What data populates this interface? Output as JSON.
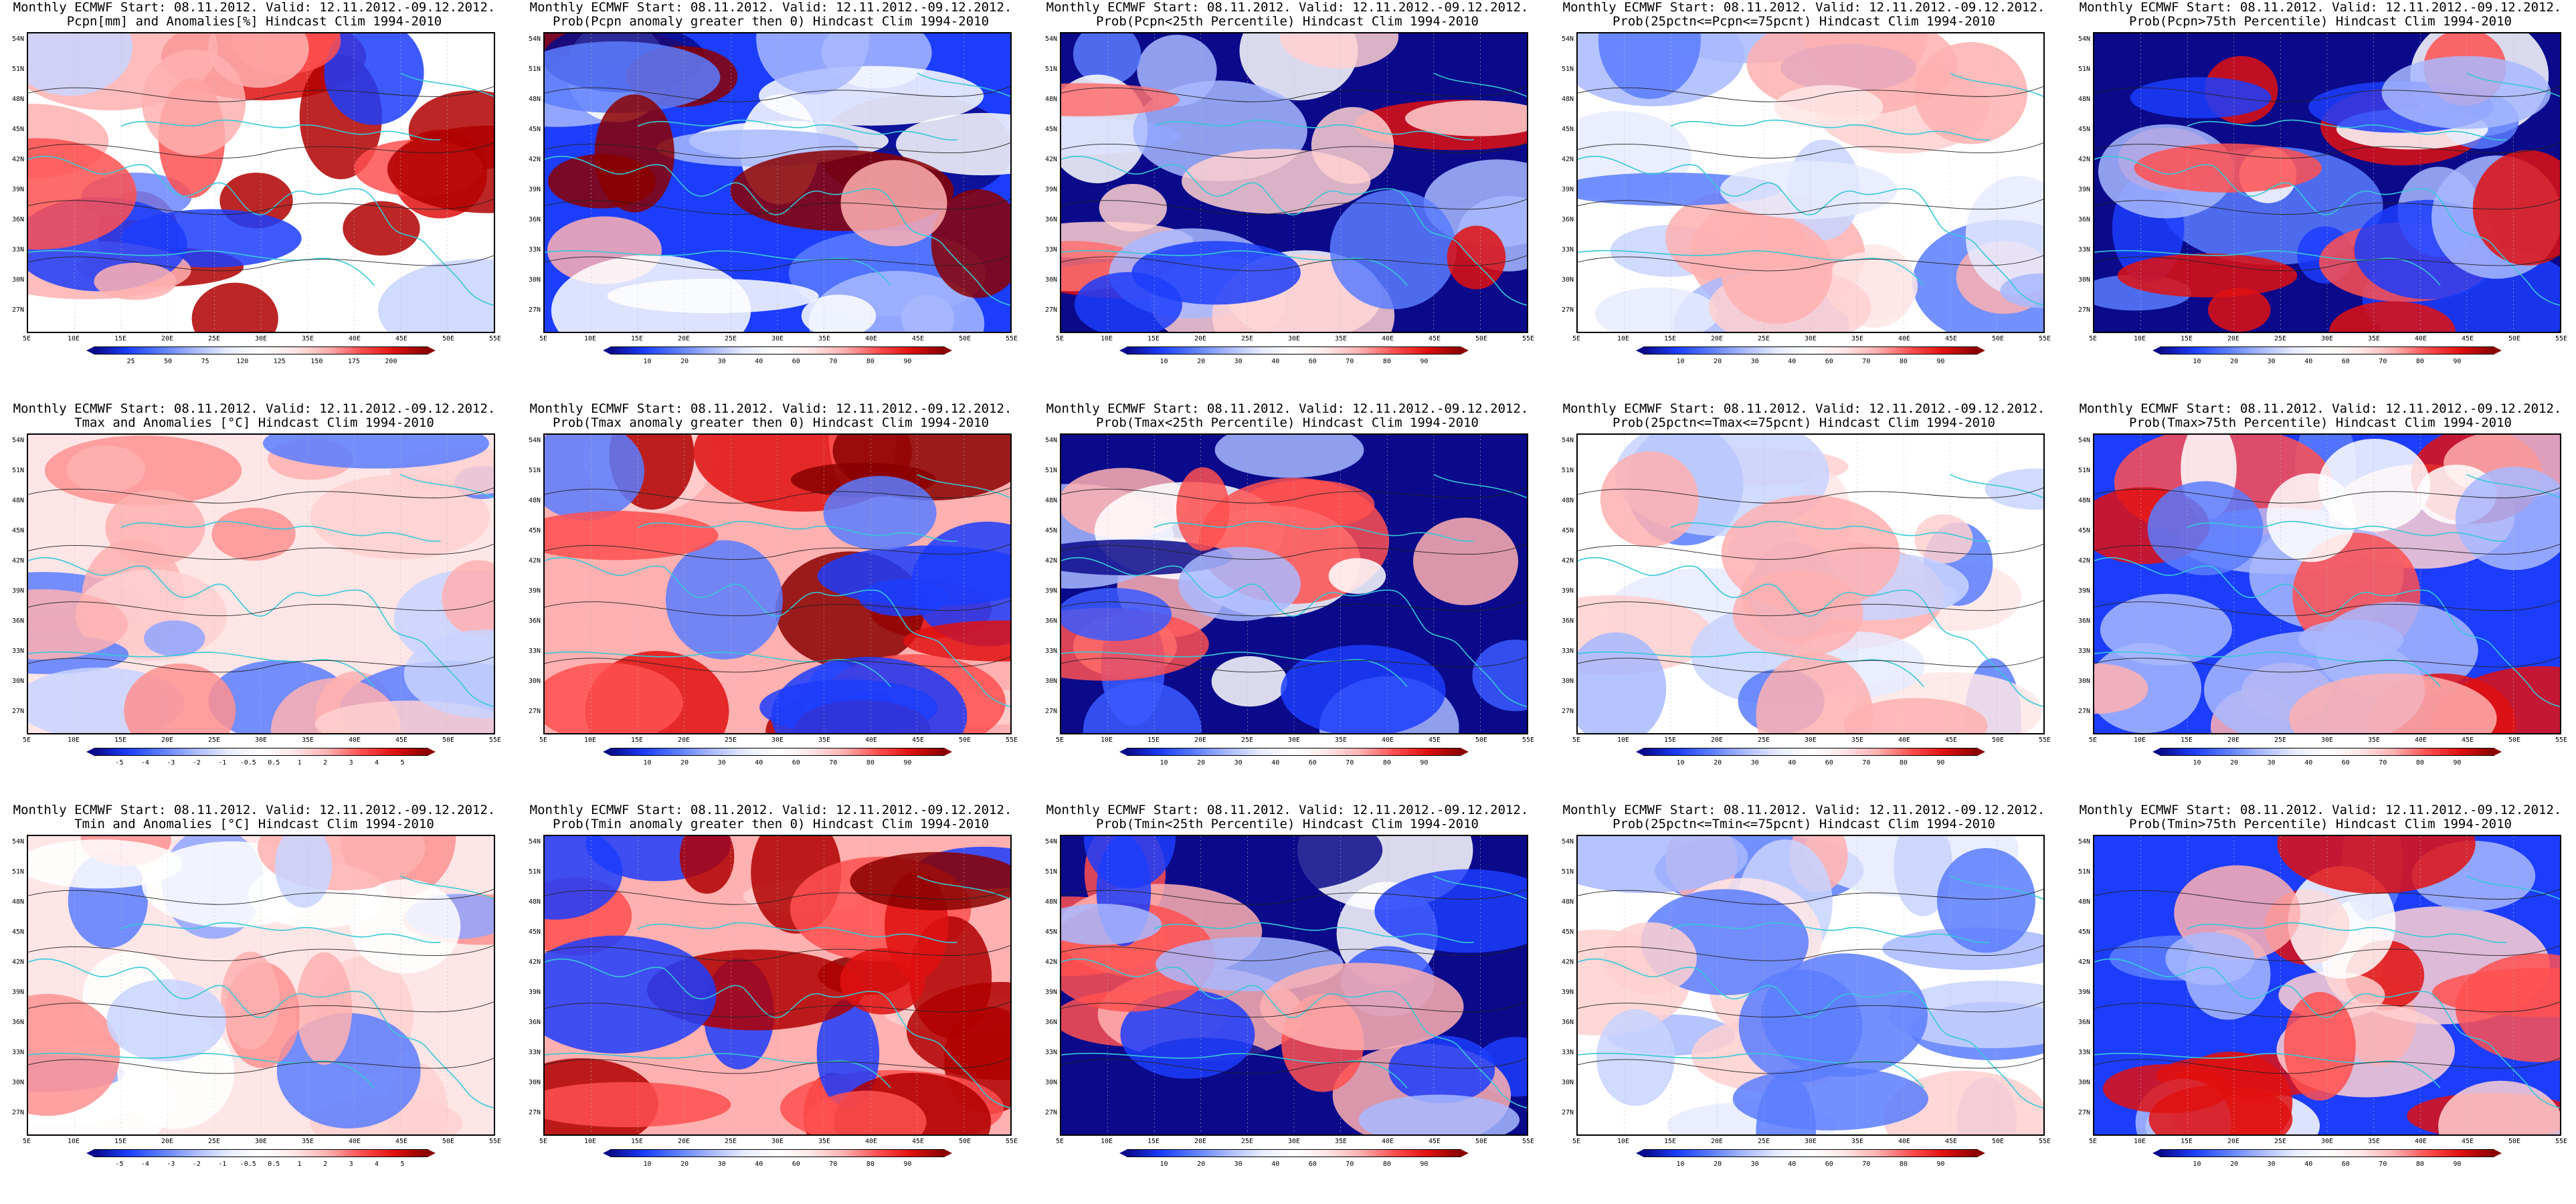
{
  "lat_labels": [
    "54N",
    "51N",
    "48N",
    "45N",
    "42N",
    "39N",
    "36N",
    "33N",
    "30N",
    "27N"
  ],
  "lon_labels": [
    "5E",
    "10E",
    "15E",
    "20E",
    "25E",
    "30E",
    "35E",
    "40E",
    "45E",
    "50E",
    "55E"
  ],
  "colors": {
    "deep_blue": "#0a0a8a",
    "blue": "#1c3dfb",
    "light_blue": "#a8b8ff",
    "white": "#ffffff",
    "light_red": "#ffb0b0",
    "red": "#e01010",
    "dark_red": "#8a0000",
    "coastline": "#35c9d6",
    "contour": "#222222"
  },
  "colorbars": {
    "pcpn_anom": [
      "25",
      "50",
      "75",
      "120",
      "125",
      "150",
      "175",
      "200"
    ],
    "temp_anom": [
      "-5",
      "-4",
      "-3",
      "-2",
      "-1",
      "-0.5",
      "0.5",
      "1",
      "2",
      "3",
      "4",
      "5"
    ],
    "prob": [
      "10",
      "20",
      "30",
      "40",
      "60",
      "70",
      "80",
      "90"
    ]
  },
  "panels": [
    {
      "title1": "Monthly ECMWF Start: 08.11.2012. Valid: 12.11.2012.-09.12.2012.",
      "title2": "Pcpn[mm] and Anomalies[%] Hindcast Clim 1994-2010",
      "bar": "pcpn_anom",
      "palette": "pcp_anom"
    },
    {
      "title1": "Monthly ECMWF Start: 08.11.2012. Valid: 12.11.2012.-09.12.2012.",
      "title2": "Prob(Pcpn anomaly greater then 0) Hindcast Clim 1994-2010",
      "bar": "prob",
      "palette": "pcp_above"
    },
    {
      "title1": "Monthly ECMWF Start: 08.11.2012. Valid: 12.11.2012.-09.12.2012.",
      "title2": "Prob(Pcpn<25th Percentile) Hindcast Clim 1994-2010",
      "bar": "prob",
      "palette": "pcp_low"
    },
    {
      "title1": "Monthly ECMWF Start: 08.11.2012. Valid: 12.11.2012.-09.12.2012.",
      "title2": "Prob(25pctn<=Pcpn<=75pcnt) Hindcast Clim 1994-2010",
      "bar": "prob",
      "palette": "mid"
    },
    {
      "title1": "Monthly ECMWF Start: 08.11.2012. Valid: 12.11.2012.-09.12.2012.",
      "title2": "Prob(Pcpn>75th Percentile) Hindcast Clim 1994-2010",
      "bar": "prob",
      "palette": "pcp_high"
    },
    {
      "title1": "Monthly ECMWF Start: 08.11.2012. Valid: 12.11.2012.-09.12.2012.",
      "title2": "Tmax and Anomalies [°C] Hindcast Clim 1994-2010",
      "bar": "temp_anom",
      "palette": "t_anom"
    },
    {
      "title1": "Monthly ECMWF Start: 08.11.2012. Valid: 12.11.2012.-09.12.2012.",
      "title2": "Prob(Tmax anomaly greater then 0) Hindcast Clim 1994-2010",
      "bar": "prob",
      "palette": "t_above"
    },
    {
      "title1": "Monthly ECMWF Start: 08.11.2012. Valid: 12.11.2012.-09.12.2012.",
      "title2": "Prob(Tmax<25th Percentile) Hindcast Clim 1994-2010",
      "bar": "prob",
      "palette": "t_low"
    },
    {
      "title1": "Monthly ECMWF Start: 08.11.2012. Valid: 12.11.2012.-09.12.2012.",
      "title2": "Prob(25pctn<=Tmax<=75pcnt) Hindcast Clim 1994-2010",
      "bar": "prob",
      "palette": "mid"
    },
    {
      "title1": "Monthly ECMWF Start: 08.11.2012. Valid: 12.11.2012.-09.12.2012.",
      "title2": "Prob(Tmax>75th Percentile) Hindcast Clim 1994-2010",
      "bar": "prob",
      "palette": "t_high"
    },
    {
      "title1": "Monthly ECMWF Start: 08.11.2012. Valid: 12.11.2012.-09.12.2012.",
      "title2": "Tmin and Anomalies [°C] Hindcast Clim 1994-2010",
      "bar": "temp_anom",
      "palette": "t_anom"
    },
    {
      "title1": "Monthly ECMWF Start: 08.11.2012. Valid: 12.11.2012.-09.12.2012.",
      "title2": "Prob(Tmin anomaly greater then 0) Hindcast Clim 1994-2010",
      "bar": "prob",
      "palette": "t_above"
    },
    {
      "title1": "Monthly ECMWF Start: 08.11.2012. Valid: 12.11.2012.-09.12.2012.",
      "title2": "Prob(Tmin<25th Percentile) Hindcast Clim 1994-2010",
      "bar": "prob",
      "palette": "t_low"
    },
    {
      "title1": "Monthly ECMWF Start: 08.11.2012. Valid: 12.11.2012.-09.12.2012.",
      "title2": "Prob(25pctn<=Tmin<=75pcnt) Hindcast Clim 1994-2010",
      "bar": "prob",
      "palette": "mid"
    },
    {
      "title1": "Monthly ECMWF Start: 08.11.2012. Valid: 12.11.2012.-09.12.2012.",
      "title2": "Prob(Tmin>75th Percentile) Hindcast Clim 1994-2010",
      "bar": "prob",
      "palette": "t_high"
    }
  ]
}
